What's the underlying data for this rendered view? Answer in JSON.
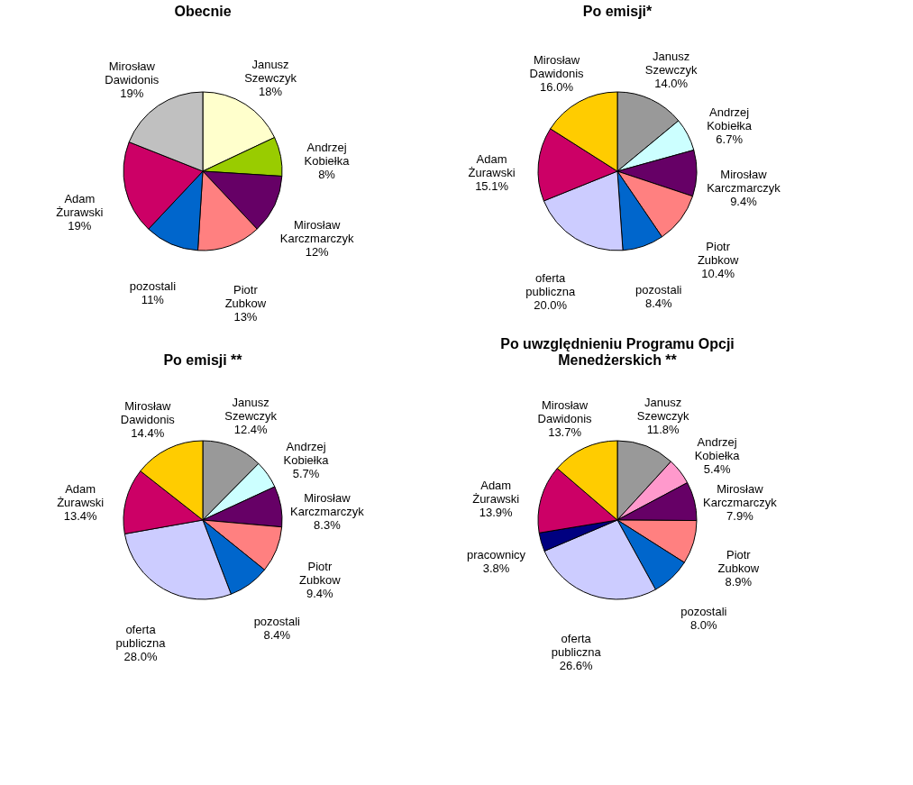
{
  "chart_data": [
    {
      "type": "pie",
      "title": "Obecnie",
      "categories": [
        "Janusz Szewczyk",
        "Andrzej Kobiełka",
        "Mirosław Karczmarczyk",
        "Piotr Zubkow",
        "pozostali",
        "Adam Żurawski",
        "Mirosław Dawidonis"
      ],
      "values": [
        18,
        8,
        12,
        13,
        11,
        19,
        19
      ],
      "value_labels": [
        "18%",
        "8%",
        "12%",
        "13%",
        "11%",
        "19%",
        "19%"
      ],
      "colors": [
        "#ffffcc",
        "#99cc00",
        "#660066",
        "#ff8080",
        "#0066cc",
        "#cc0066",
        "#c0c0c0"
      ]
    },
    {
      "type": "pie",
      "title": "Po emisji*",
      "categories": [
        "Janusz Szewczyk",
        "Andrzej Kobiełka",
        "Mirosław Karczmarczyk",
        "Piotr Zubkow",
        "pozostali",
        "oferta publiczna",
        "Adam Żurawski",
        "Mirosław Dawidonis"
      ],
      "values": [
        14.0,
        6.7,
        9.4,
        10.4,
        8.4,
        20.0,
        15.1,
        16.0
      ],
      "value_labels": [
        "14.0%",
        "6.7%",
        "9.4%",
        "10.4%",
        "8.4%",
        "20.0%",
        "15.1%",
        "16.0%"
      ],
      "colors": [
        "#999999",
        "#ccffff",
        "#660066",
        "#ff8080",
        "#0066cc",
        "#ccccff",
        "#cc0066",
        "#ffcc00"
      ]
    },
    {
      "type": "pie",
      "title": "Po emisji **",
      "categories": [
        "Janusz Szewczyk",
        "Andrzej Kobiełka",
        "Mirosław Karczmarczyk",
        "Piotr Zubkow",
        "pozostali",
        "oferta publiczna",
        "Adam Żurawski",
        "Mirosław Dawidonis"
      ],
      "values": [
        12.4,
        5.7,
        8.3,
        9.4,
        8.4,
        28.0,
        13.4,
        14.4
      ],
      "value_labels": [
        "12.4%",
        "5.7%",
        "8.3%",
        "9.4%",
        "8.4%",
        "28.0%",
        "13.4%",
        "14.4%"
      ],
      "colors": [
        "#999999",
        "#ccffff",
        "#660066",
        "#ff8080",
        "#0066cc",
        "#ccccff",
        "#cc0066",
        "#ffcc00"
      ]
    },
    {
      "type": "pie",
      "title": "Po uwzględnieniu Programu Opcji Menedżerskich **",
      "categories": [
        "Janusz Szewczyk",
        "Andrzej Kobiełka",
        "Mirosław Karczmarczyk",
        "Piotr Zubkow",
        "pozostali",
        "oferta publiczna",
        "pracownicy",
        "Adam Żurawski",
        "Mirosław Dawidonis"
      ],
      "values": [
        11.8,
        5.4,
        7.9,
        8.9,
        8.0,
        26.6,
        3.8,
        13.9,
        13.7
      ],
      "value_labels": [
        "11.8%",
        "5.4%",
        "7.9%",
        "8.9%",
        "8.0%",
        "26.6%",
        "3.8%",
        "13.9%",
        "13.7%"
      ],
      "colors": [
        "#999999",
        "#ff99cc",
        "#660066",
        "#ff8080",
        "#0066cc",
        "#ccccff",
        "#000080",
        "#cc0066",
        "#ffcc00"
      ]
    }
  ]
}
